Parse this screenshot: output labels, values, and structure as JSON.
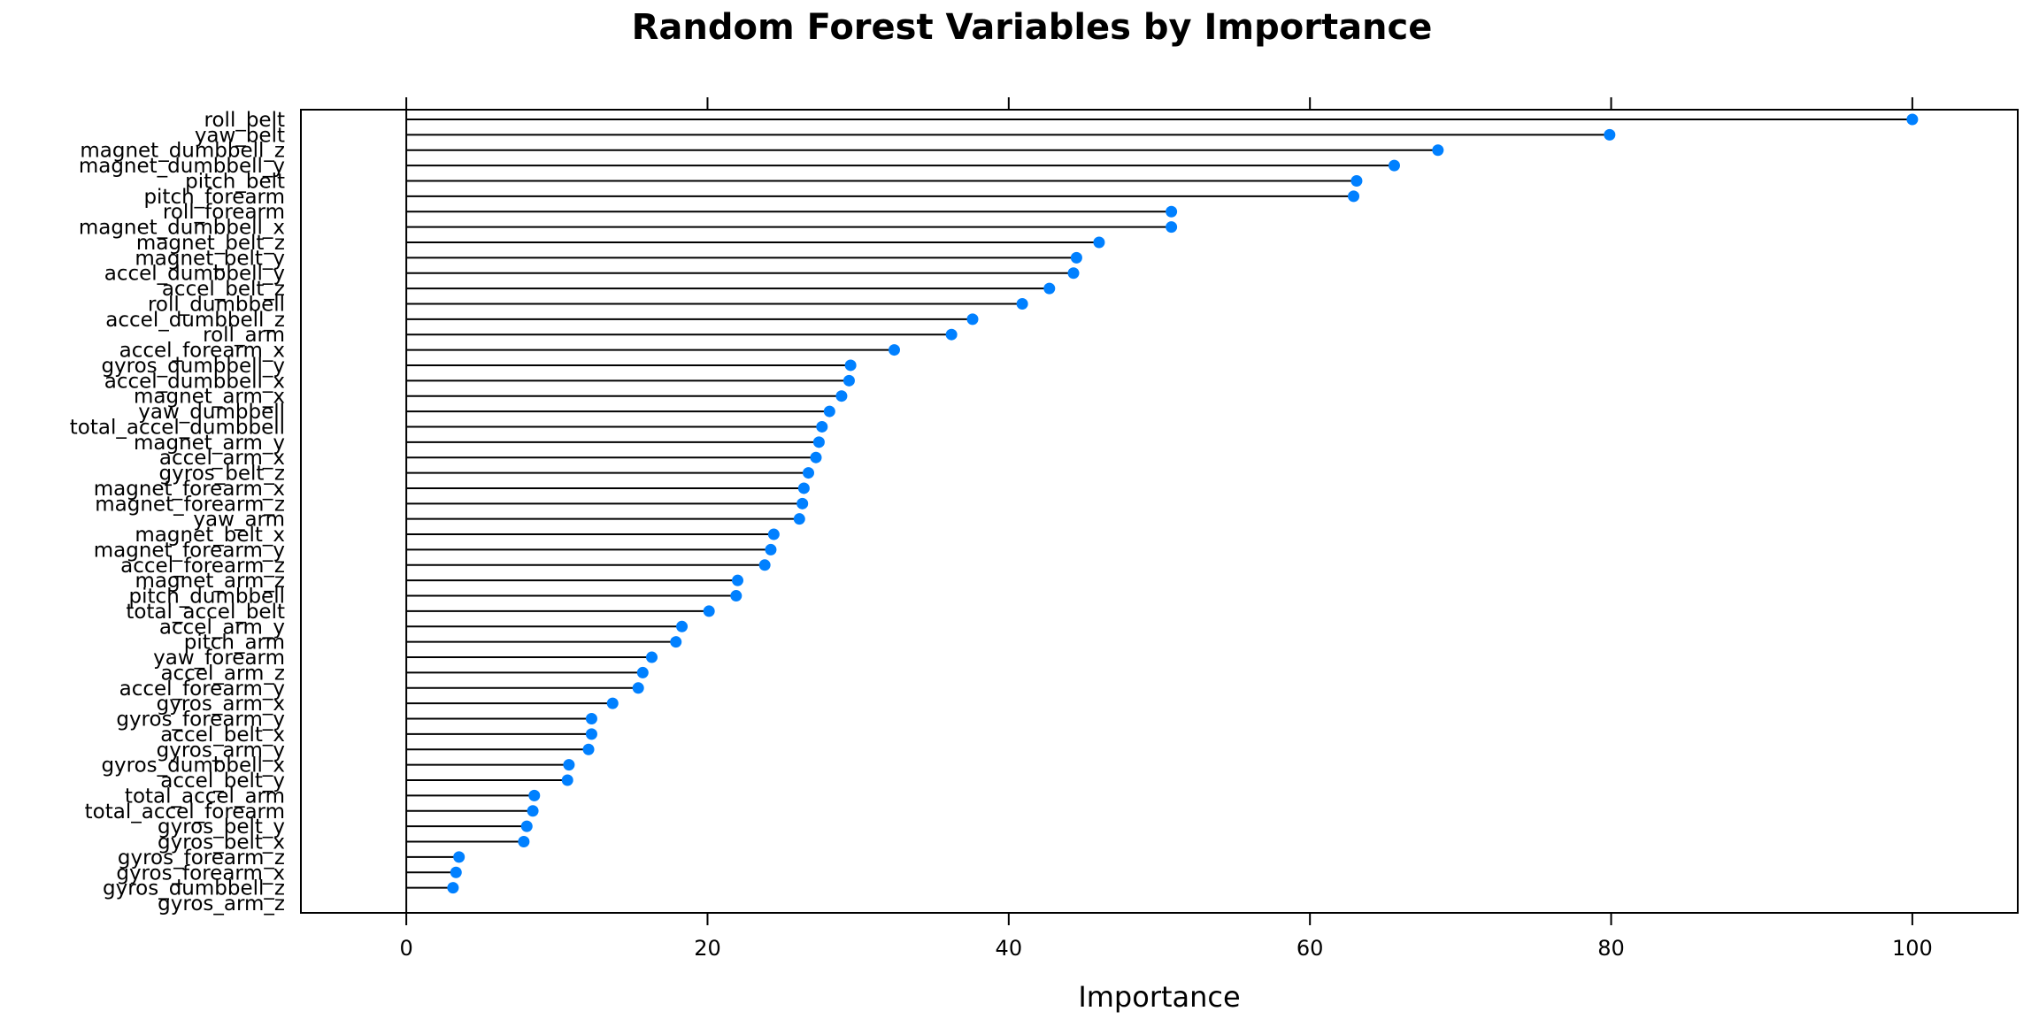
{
  "chart_data": {
    "type": "dotplot",
    "title": "Random Forest Variables by Importance",
    "xlabel": "Importance",
    "ylabel": "",
    "xlim": [
      -7,
      107
    ],
    "xticks": [
      0,
      20,
      40,
      60,
      80,
      100
    ],
    "grid": false,
    "point_color": "#0080ff",
    "line_color": "#000000",
    "categories": [
      "roll_belt",
      "yaw_belt",
      "magnet_dumbbell_z",
      "magnet_dumbbell_y",
      "pitch_belt",
      "pitch_forearm",
      "roll_forearm",
      "magnet_dumbbell_x",
      "magnet_belt_z",
      "magnet_belt_y",
      "accel_dumbbell_y",
      "accel_belt_z",
      "roll_dumbbell",
      "accel_dumbbell_z",
      "roll_arm",
      "accel_forearm_x",
      "gyros_dumbbell_y",
      "accel_dumbbell_x",
      "magnet_arm_x",
      "yaw_dumbbell",
      "total_accel_dumbbell",
      "magnet_arm_y",
      "accel_arm_x",
      "gyros_belt_z",
      "magnet_forearm_x",
      "magnet_forearm_z",
      "yaw_arm",
      "magnet_belt_x",
      "magnet_forearm_y",
      "accel_forearm_z",
      "magnet_arm_z",
      "pitch_dumbbell",
      "total_accel_belt",
      "accel_arm_y",
      "pitch_arm",
      "yaw_forearm",
      "accel_arm_z",
      "accel_forearm_y",
      "gyros_arm_x",
      "gyros_forearm_y",
      "accel_belt_x",
      "gyros_arm_y",
      "gyros_dumbbell_x",
      "accel_belt_y",
      "total_accel_arm",
      "total_accel_forearm",
      "gyros_belt_y",
      "gyros_belt_x",
      "gyros_forearm_z",
      "gyros_forearm_x",
      "gyros_dumbbell_z",
      "gyros_arm_z"
    ],
    "values": [
      100.0,
      79.9,
      68.5,
      65.6,
      63.1,
      62.9,
      50.8,
      50.8,
      46.0,
      44.5,
      44.3,
      42.7,
      40.9,
      37.6,
      36.2,
      32.4,
      29.5,
      29.4,
      28.9,
      28.1,
      27.6,
      27.4,
      27.2,
      26.7,
      26.4,
      26.3,
      26.1,
      24.4,
      24.2,
      23.8,
      22.0,
      21.9,
      20.1,
      18.3,
      17.9,
      16.3,
      15.7,
      15.4,
      13.7,
      12.3,
      12.3,
      12.1,
      10.8,
      10.7,
      8.5,
      8.4,
      8.0,
      7.8,
      3.5,
      3.3,
      3.1,
      0.0
    ]
  }
}
